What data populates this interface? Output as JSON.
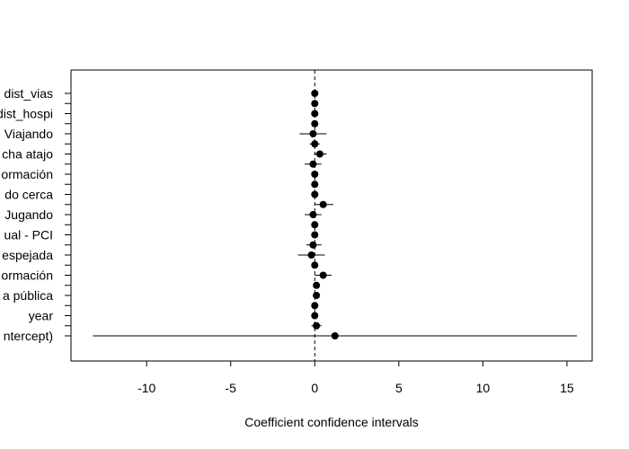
{
  "chart_data": {
    "type": "scatter",
    "subtype": "coefficient-interval-plot",
    "title": "",
    "xlabel": "Coefficient confidence intervals",
    "ylabel": "",
    "xlim": [
      -14.5,
      16.5
    ],
    "xticks": [
      -10,
      -5,
      0,
      5,
      10,
      15
    ],
    "xtick_labels": [
      "-10",
      "-5",
      "0",
      "5",
      "10",
      "15"
    ],
    "reference_line": 0,
    "grid": false,
    "legend": "none",
    "point_color": "#000000",
    "labels": [
      "dist_vias",
      "dist_hospi",
      "Viajando",
      "cha atajo",
      "ormación",
      "do cerca",
      "Jugando",
      "ual - PCI",
      "espejada",
      "ormación",
      "a pública",
      "year",
      "ntercept)"
    ],
    "coefficients": [
      {
        "estimate": 0.0,
        "lower": -0.05,
        "upper": 0.05,
        "labeled": true,
        "label_index": 0
      },
      {
        "estimate": 0.0,
        "lower": -0.05,
        "upper": 0.05,
        "labeled": false
      },
      {
        "estimate": 0.0,
        "lower": -0.05,
        "upper": 0.05,
        "labeled": true,
        "label_index": 1
      },
      {
        "estimate": 0.0,
        "lower": -0.05,
        "upper": 0.05,
        "labeled": false
      },
      {
        "estimate": -0.1,
        "lower": -0.9,
        "upper": 0.7,
        "labeled": true,
        "label_index": 2
      },
      {
        "estimate": 0.0,
        "lower": -0.3,
        "upper": 0.3,
        "labeled": false
      },
      {
        "estimate": 0.3,
        "lower": 0.0,
        "upper": 0.7,
        "labeled": true,
        "label_index": 3
      },
      {
        "estimate": -0.1,
        "lower": -0.6,
        "upper": 0.4,
        "labeled": false
      },
      {
        "estimate": 0.0,
        "lower": -0.1,
        "upper": 0.1,
        "labeled": true,
        "label_index": 4
      },
      {
        "estimate": 0.0,
        "lower": -0.1,
        "upper": 0.1,
        "labeled": false
      },
      {
        "estimate": 0.0,
        "lower": -0.15,
        "upper": 0.15,
        "labeled": true,
        "label_index": 5
      },
      {
        "estimate": 0.5,
        "lower": 0.0,
        "upper": 1.1,
        "labeled": false
      },
      {
        "estimate": -0.1,
        "lower": -0.6,
        "upper": 0.4,
        "labeled": true,
        "label_index": 6
      },
      {
        "estimate": 0.0,
        "lower": -0.1,
        "upper": 0.1,
        "labeled": false
      },
      {
        "estimate": 0.0,
        "lower": -0.1,
        "upper": 0.1,
        "labeled": true,
        "label_index": 7
      },
      {
        "estimate": -0.1,
        "lower": -0.5,
        "upper": 0.4,
        "labeled": false
      },
      {
        "estimate": -0.2,
        "lower": -1.0,
        "upper": 0.6,
        "labeled": true,
        "label_index": 8
      },
      {
        "estimate": 0.0,
        "lower": -0.1,
        "upper": 0.1,
        "labeled": false
      },
      {
        "estimate": 0.5,
        "lower": 0.0,
        "upper": 1.0,
        "labeled": true,
        "label_index": 9
      },
      {
        "estimate": 0.1,
        "lower": 0.0,
        "upper": 0.2,
        "labeled": false
      },
      {
        "estimate": 0.1,
        "lower": 0.0,
        "upper": 0.2,
        "labeled": true,
        "label_index": 10
      },
      {
        "estimate": 0.0,
        "lower": -0.1,
        "upper": 0.1,
        "labeled": false
      },
      {
        "estimate": 0.0,
        "lower": -0.1,
        "upper": 0.1,
        "labeled": true,
        "label_index": 11
      },
      {
        "estimate": 0.1,
        "lower": -0.2,
        "upper": 0.4,
        "labeled": false
      },
      {
        "estimate": 1.2,
        "lower": -13.2,
        "upper": 15.6,
        "labeled": true,
        "label_index": 12
      }
    ]
  }
}
